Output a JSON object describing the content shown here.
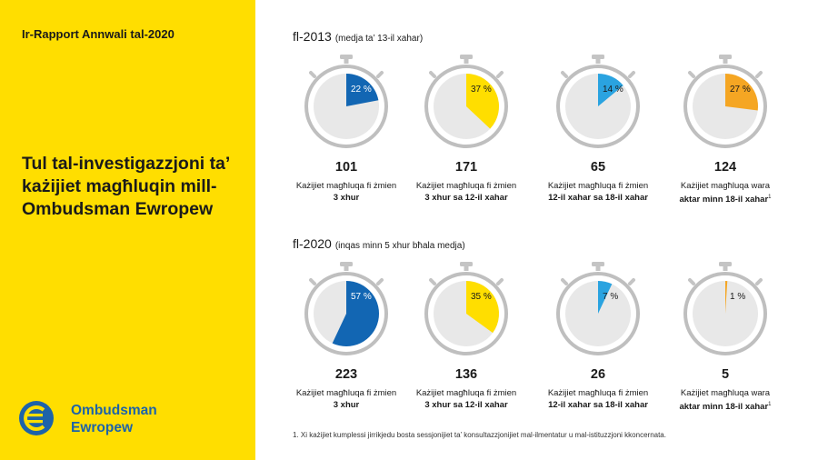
{
  "header": {
    "report_title": "Ir-Rapport Annwali tal-2020",
    "main_title": "Tul tal-investigazzjoni ta’ każijiet magħluqin mill-Ombudsman Ewropew"
  },
  "brand": {
    "line1": "Ombudsman",
    "line2": "Ewropew",
    "logo_icon": "euro-circle-logo-icon",
    "color": "#1d63a9"
  },
  "footnote": "1. Xi każijiet kumplessi jirrikjedu bosta sessjonijiet ta’ konsultazzjonijiet mal-ilmentatur u mal-istituzzjoni kkoncernata.",
  "colors": {
    "panel": "#ffde00",
    "dial": "#e8e8e8",
    "watch_ring": "#bfbfbf"
  },
  "chart_data": [
    {
      "type": "pie",
      "title": "fl-2013",
      "subtitle": "(medja ta’ 13-il xahar)",
      "items": [
        {
          "percent": 22,
          "label": "22 %",
          "count": "101",
          "desc1": "Każijiet magħluqa fi żmien",
          "desc2": "3 xhur",
          "footnote_mark": "",
          "color": "#1266b3"
        },
        {
          "percent": 37,
          "label": "37 %",
          "count": "171",
          "desc1": "Każijiet magħluqa fi żmien",
          "desc2": "3 xhur sa 12-il xahar",
          "footnote_mark": "",
          "color": "#ffde00"
        },
        {
          "percent": 14,
          "label": "14 %",
          "count": "65",
          "desc1": "Każijiet magħluqa fi żmien",
          "desc2": "12-il xahar sa 18-il xahar",
          "footnote_mark": "",
          "color": "#2aa3e0"
        },
        {
          "percent": 27,
          "label": "27 %",
          "count": "124",
          "desc1": "Każijiet magħluqa wara",
          "desc2": "aktar minn 18-il xahar",
          "footnote_mark": "1",
          "color": "#f5a623"
        }
      ]
    },
    {
      "type": "pie",
      "title": "fl-2020",
      "subtitle": "(inqas minn 5 xhur bħala medja)",
      "items": [
        {
          "percent": 57,
          "label": "57 %",
          "count": "223",
          "desc1": "Każijiet magħluqa fi żmien",
          "desc2": "3 xhur",
          "footnote_mark": "",
          "color": "#1266b3"
        },
        {
          "percent": 35,
          "label": "35 %",
          "count": "136",
          "desc1": "Każijiet magħluqa fi żmien",
          "desc2": "3 xhur sa 12-il xahar",
          "footnote_mark": "",
          "color": "#ffde00"
        },
        {
          "percent": 7,
          "label": "7 %",
          "count": "26",
          "desc1": "Każijiet magħluqa fi żmien",
          "desc2": "12-il xahar sa 18-il xahar",
          "footnote_mark": "",
          "color": "#2aa3e0"
        },
        {
          "percent": 1,
          "label": "1 %",
          "count": "5",
          "desc1": "Każijiet magħluqa wara",
          "desc2": "aktar minn 18-il xahar",
          "footnote_mark": "1",
          "color": "#f5a623"
        }
      ]
    }
  ]
}
